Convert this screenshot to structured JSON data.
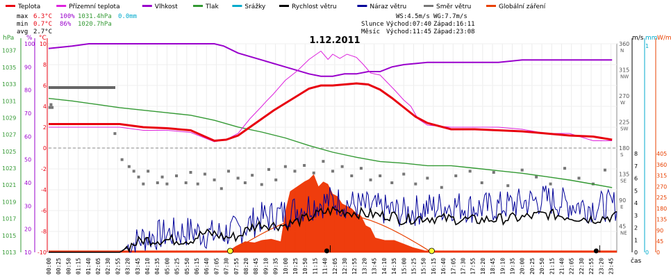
{
  "chart_data": {
    "type": "line",
    "title": "1.12.2011",
    "xlabel": "čas",
    "legend": [
      {
        "name": "Teplota",
        "color": "#e8000f"
      },
      {
        "name": "Přízemní teplota",
        "color": "#dd22dd"
      },
      {
        "name": "Vlhkost",
        "color": "#9900cc"
      },
      {
        "name": "Tlak",
        "color": "#339933"
      },
      {
        "name": "Srážky",
        "color": "#00aacc"
      },
      {
        "name": "Rychlost větru",
        "color": "#000000"
      },
      {
        "name": "Náraz větru",
        "color": "#000099"
      },
      {
        "name": "Směr větru",
        "color": "#777777"
      },
      {
        "name": "Globální záření",
        "color": "#e84000"
      }
    ],
    "stats": {
      "max_label": "max",
      "max_temp": "6.3°C",
      "max_hum": "100%",
      "max_press": "1031.4hPa",
      "max_rain": "0.0mm",
      "min_label": "min",
      "min_temp": "0.7°C",
      "min_hum": "86%",
      "min_press": "1020.7hPa",
      "avg_label": "avg",
      "avg_temp": "2.7°C"
    },
    "wind_info": {
      "ws": "WS:4.5m/s",
      "wg": "WG:7.7m/s"
    },
    "sun_info": {
      "label": "Slunce",
      "rise": "Východ:07:40",
      "set": "Západ:16:11"
    },
    "moon_info": {
      "label": "Měsíc",
      "rise": "Východ:11:45",
      "set": "Západ:23:08"
    },
    "axes": {
      "hpa_unit": "hPa",
      "hum_unit": "%",
      "temp_unit": "°C",
      "speed_unit": "m/s",
      "rain_unit": "mm",
      "rad_unit": "W/m²",
      "hpa_ticks": [
        "1037",
        "1035",
        "1033",
        "1031",
        "1029",
        "1027",
        "1025",
        "1023",
        "1021",
        "1019",
        "1017",
        "1015",
        "1013"
      ],
      "hum_ticks": [
        "100",
        "90",
        "80",
        "70",
        "60",
        "50",
        "40",
        "30",
        "20",
        "10"
      ],
      "temp_ticks": [
        "10",
        "8",
        "6",
        "4",
        "2",
        "0",
        "-2",
        "-4",
        "-6",
        "-8",
        "-10"
      ],
      "dir_ticks": [
        {
          "deg": "360",
          "lbl": "N"
        },
        {
          "deg": "315",
          "lbl": "NW"
        },
        {
          "deg": "270",
          "lbl": "W"
        },
        {
          "deg": "225",
          "lbl": "SW"
        },
        {
          "deg": "180",
          "lbl": "S"
        },
        {
          "deg": "135",
          "lbl": "SE"
        },
        {
          "deg": "90",
          "lbl": "E"
        },
        {
          "deg": "45",
          "lbl": "NE"
        }
      ],
      "speed_ticks": [
        "8",
        "7",
        "6",
        "5",
        "4",
        "3",
        "2",
        "1",
        "0"
      ],
      "rain_ticks": [
        "1",
        "0"
      ],
      "rad_ticks": [
        "405",
        "360",
        "315",
        "270",
        "225",
        "180",
        "135",
        "90",
        "45",
        "0"
      ],
      "time_ticks": [
        "00:00",
        "00:25",
        "00:50",
        "01:15",
        "01:40",
        "02:05",
        "02:30",
        "02:55",
        "03:20",
        "03:45",
        "04:10",
        "04:35",
        "05:00",
        "05:25",
        "05:50",
        "06:15",
        "06:40",
        "07:05",
        "07:30",
        "07:55",
        "08:20",
        "08:45",
        "09:10",
        "09:35",
        "10:00",
        "10:25",
        "10:50",
        "11:15",
        "11:40",
        "12:05",
        "12:30",
        "12:55",
        "13:20",
        "13:45",
        "14:10",
        "14:35",
        "15:00",
        "15:25",
        "15:50",
        "16:15",
        "16:40",
        "17:05",
        "17:30",
        "17:55",
        "18:20",
        "18:45",
        "19:10",
        "19:35",
        "20:00",
        "20:25",
        "20:50",
        "21:15",
        "21:40",
        "22:05",
        "22:30",
        "22:55",
        "23:20",
        "23:45"
      ]
    },
    "xlim": [
      0,
      24
    ],
    "temp_ylim": [
      -10,
      10
    ],
    "series": {
      "temperature": {
        "x": [
          0,
          1,
          2,
          3,
          4,
          5,
          6,
          7,
          7.5,
          8,
          8.5,
          9,
          9.5,
          10,
          10.5,
          11,
          11.5,
          12,
          12.5,
          13,
          13.5,
          14,
          14.5,
          15,
          15.5,
          16,
          17,
          18,
          19,
          20,
          21,
          22,
          23,
          23.8
        ],
        "y": [
          2.3,
          2.3,
          2.3,
          2.3,
          2.0,
          1.9,
          1.7,
          0.7,
          0.8,
          1.2,
          2.0,
          2.8,
          3.6,
          4.3,
          5.0,
          5.7,
          6.0,
          6.0,
          6.1,
          6.2,
          6.1,
          5.6,
          4.8,
          3.9,
          3.0,
          2.4,
          1.8,
          1.8,
          1.7,
          1.6,
          1.4,
          1.2,
          1.1,
          0.8
        ]
      },
      "ground_temp": {
        "x": [
          0,
          1,
          2,
          3,
          4,
          5,
          6,
          7,
          7.5,
          8,
          8.5,
          9,
          9.2,
          9.5,
          10,
          10.5,
          11,
          11.5,
          11.8,
          12,
          12.3,
          12.6,
          13,
          13.3,
          13.6,
          14,
          14.3,
          14.6,
          15,
          15.3,
          15.6,
          16,
          17,
          18,
          19,
          20,
          21,
          22,
          23,
          23.8
        ],
        "y": [
          2.0,
          2.0,
          2.0,
          2.0,
          1.7,
          1.7,
          1.5,
          0.6,
          0.8,
          1.4,
          2.8,
          4.0,
          4.5,
          5.2,
          6.5,
          7.4,
          8.5,
          9.3,
          8.5,
          9.0,
          8.6,
          9.0,
          8.7,
          8.0,
          7.2,
          7.0,
          6.3,
          5.6,
          4.6,
          4.0,
          2.8,
          2.2,
          2.0,
          2.0,
          2.0,
          1.8,
          1.4,
          1.4,
          0.7,
          0.7
        ]
      },
      "humidity": {
        "x": [
          0,
          1,
          1.7,
          2,
          3,
          4,
          5,
          6,
          7,
          7.4,
          8,
          9,
          10,
          11,
          11.5,
          12,
          12.5,
          13,
          13.5,
          14,
          14.5,
          15,
          16,
          17,
          18,
          19,
          20,
          21,
          22,
          23,
          23.8
        ],
        "y": [
          98,
          99,
          100,
          100,
          100,
          100,
          100,
          100,
          100,
          99,
          96,
          93,
          90,
          87,
          86,
          86,
          87,
          87,
          88,
          88,
          90,
          91,
          92,
          92,
          92,
          92,
          93,
          93,
          93,
          93,
          93
        ]
      },
      "pressure": {
        "x": [
          0,
          1,
          2,
          3,
          4,
          5,
          6,
          7,
          8,
          9,
          10,
          11,
          12,
          13,
          14,
          15,
          16,
          17,
          18,
          19,
          20,
          21,
          22,
          23,
          23.8
        ],
        "y": [
          1031.3,
          1031.0,
          1030.6,
          1030.2,
          1029.9,
          1029.6,
          1029.3,
          1028.7,
          1027.9,
          1027.3,
          1026.6,
          1025.7,
          1024.9,
          1024.3,
          1023.8,
          1023.6,
          1023.3,
          1023.3,
          1023.0,
          1022.7,
          1022.4,
          1022.0,
          1021.6,
          1021.1,
          1020.7
        ]
      },
      "radiation": {
        "x": [
          7.6,
          7.9,
          8.3,
          8.7,
          9,
          9.4,
          9.8,
          10,
          10.2,
          10.5,
          10.8,
          11,
          11.2,
          11.4,
          11.6,
          11.8,
          12,
          12.2,
          12.4,
          12.6,
          12.8,
          13,
          13.2,
          13.4,
          13.6,
          13.8,
          14.2,
          14.6,
          15,
          15.4,
          15.8,
          16.1
        ],
        "y": [
          5,
          25,
          45,
          40,
          50,
          55,
          45,
          170,
          250,
          270,
          290,
          300,
          320,
          270,
          290,
          280,
          240,
          230,
          200,
          190,
          180,
          160,
          150,
          110,
          100,
          60,
          50,
          50,
          35,
          20,
          10,
          0
        ]
      },
      "clear_sky_radiation": {
        "sunrise": 7.67,
        "sunset": 16.18,
        "peak": 160
      },
      "wind_speed_avg": {
        "x": [
          0,
          1,
          2,
          3,
          3.5,
          4,
          5,
          6,
          6.5,
          7,
          7.5,
          8,
          8.5,
          9,
          9.5,
          10,
          10.5,
          11,
          11.5,
          12,
          12.5,
          13,
          13.5,
          14,
          14.5,
          15,
          15.5,
          16,
          17,
          18,
          19,
          20,
          21,
          22,
          23,
          23.8
        ],
        "y": [
          0,
          0,
          0,
          0,
          0.6,
          1,
          1,
          1,
          1.5,
          1.5,
          1.2,
          1.3,
          2,
          2.3,
          2.2,
          2.2,
          2.5,
          2.8,
          3.2,
          3.4,
          3.3,
          3.2,
          3.1,
          3.0,
          3.0,
          2.6,
          2.8,
          2.8,
          2.7,
          2.6,
          2.7,
          2.8,
          3.1,
          2.9,
          2.7,
          2.9
        ]
      },
      "wind_gust_base": {
        "x": [
          0,
          2,
          3,
          4,
          5,
          6,
          7,
          8,
          9,
          10,
          11,
          12,
          13,
          14,
          15,
          16,
          17,
          18,
          19,
          20,
          21,
          22,
          23,
          23.8
        ],
        "y": [
          0,
          0,
          0,
          1.2,
          1.5,
          1.7,
          1.4,
          1.8,
          2.8,
          3.2,
          3.8,
          4.2,
          3.8,
          3.5,
          3.2,
          3.6,
          3.8,
          3.6,
          3.7,
          4.0,
          4.3,
          3.9,
          3.7,
          3.8
        ]
      },
      "wind_direction_deg": {
        "note": "scatter, degrees",
        "points": [
          [
            0.05,
            250
          ],
          [
            0.1,
            255
          ],
          [
            0.15,
            250
          ],
          [
            2.8,
            205
          ],
          [
            3.1,
            160
          ],
          [
            3.4,
            148
          ],
          [
            3.6,
            140
          ],
          [
            3.8,
            130
          ],
          [
            4.0,
            118
          ],
          [
            4.2,
            140
          ],
          [
            4.6,
            120
          ],
          [
            4.8,
            130
          ],
          [
            5.0,
            118
          ],
          [
            5.4,
            132
          ],
          [
            5.8,
            120
          ],
          [
            6.0,
            138
          ],
          [
            6.3,
            118
          ],
          [
            6.6,
            135
          ],
          [
            7.0,
            125
          ],
          [
            7.3,
            110
          ],
          [
            7.6,
            140
          ],
          [
            8.0,
            128
          ],
          [
            8.3,
            120
          ],
          [
            8.6,
            133
          ],
          [
            9.0,
            117
          ],
          [
            9.3,
            143
          ],
          [
            9.6,
            125
          ],
          [
            10.0,
            148
          ],
          [
            10.4,
            140
          ],
          [
            10.8,
            150
          ],
          [
            11.2,
            137
          ],
          [
            11.6,
            157
          ],
          [
            12.0,
            140
          ],
          [
            12.4,
            148
          ],
          [
            12.8,
            132
          ],
          [
            13.2,
            145
          ],
          [
            13.6,
            125
          ],
          [
            14.0,
            132
          ],
          [
            14.5,
            120
          ],
          [
            15.0,
            135
          ],
          [
            15.5,
            118
          ],
          [
            16.0,
            128
          ],
          [
            16.6,
            112
          ],
          [
            17.2,
            132
          ],
          [
            17.8,
            140
          ],
          [
            18.3,
            120
          ],
          [
            18.8,
            138
          ],
          [
            19.4,
            115
          ],
          [
            20.0,
            142
          ],
          [
            20.6,
            130
          ],
          [
            21.2,
            118
          ],
          [
            21.8,
            145
          ],
          [
            22.4,
            128
          ],
          [
            23.0,
            118
          ],
          [
            23.5,
            142
          ]
        ]
      }
    },
    "sunrise_hour": 7.67,
    "sunset_hour": 16.18,
    "moon_rise_hour": 11.75,
    "moon_set_hour": 23.13,
    "colors": {
      "grid": "#e8e8e8",
      "frame": "#333333"
    }
  }
}
